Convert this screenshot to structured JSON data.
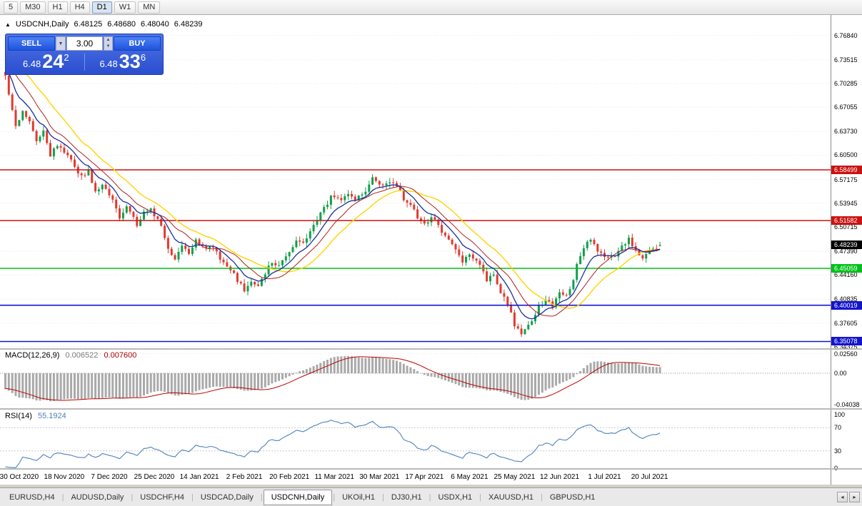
{
  "toolbar": {
    "timeframes": [
      "5",
      "M30",
      "H1",
      "H4",
      "D1",
      "W1",
      "MN"
    ],
    "active": "D1"
  },
  "chart": {
    "collapse_icon": "▲",
    "title_symbol": "USDCNH,Daily",
    "ohlc": {
      "open": "6.48125",
      "high": "6.48680",
      "low": "6.48040",
      "close": "6.48239"
    }
  },
  "trade_panel": {
    "sell_label": "SELL",
    "buy_label": "BUY",
    "volume": "3.00",
    "bid": {
      "prefix": "6.48",
      "big": "24",
      "sup": "2"
    },
    "ask": {
      "prefix": "6.48",
      "big": "33",
      "sup": "6"
    }
  },
  "price_axis": {
    "labels": [
      "6.76840",
      "6.73515",
      "6.70285",
      "6.67055",
      "6.63730",
      "6.60500",
      "6.57175",
      "6.53945",
      "6.50715",
      "6.47390",
      "6.44160",
      "6.40835",
      "6.37605",
      "6.34375"
    ],
    "current": {
      "value": "6.48239",
      "color": "#000000"
    }
  },
  "levels": [
    {
      "value": "6.58499",
      "price": 6.58499,
      "color": "#CC1111",
      "type": "resistance"
    },
    {
      "value": "6.51582",
      "price": 6.51582,
      "color": "#CC1111",
      "type": "resistance"
    },
    {
      "value": "6.45059",
      "price": 6.45059,
      "color": "#00C11B",
      "type": "support"
    },
    {
      "value": "6.40019",
      "price": 6.40019,
      "color": "#1414CC",
      "type": "support"
    },
    {
      "value": "6.35078",
      "price": 6.35078,
      "color": "#1414CC",
      "type": "support"
    }
  ],
  "macd": {
    "label": "MACD(12,26,9)",
    "value": "0.006522",
    "signal": "0.007600",
    "axis": [
      "0.02560",
      "0.00",
      "-0.04038"
    ]
  },
  "rsi": {
    "label": "RSI(14)",
    "value": "55.1924",
    "axis": [
      "100",
      "70",
      "30",
      "0"
    ]
  },
  "date_axis": [
    "30 Oct 2020",
    "18 Nov 2020",
    "7 Dec 2020",
    "25 Dec 2020",
    "14 Jan 2021",
    "2 Feb 2021",
    "20 Feb 2021",
    "11 Mar 2021",
    "30 Mar 2021",
    "17 Apr 2021",
    "6 May 2021",
    "25 May 2021",
    "12 Jun 2021",
    "1 Jul 2021",
    "20 Jul 2021"
  ],
  "tabs": {
    "items": [
      {
        "label": "EURUSD,H4",
        "active": false
      },
      {
        "label": "AUDUSD,Daily",
        "active": false
      },
      {
        "label": "USDCHF,H4",
        "active": false
      },
      {
        "label": "USDCAD,Daily",
        "active": false
      },
      {
        "label": "USDCNH,Daily",
        "active": true
      },
      {
        "label": "UKOil,H1",
        "active": false
      },
      {
        "label": "DJ30,H1",
        "active": false
      },
      {
        "label": "USDX,H1",
        "active": false
      },
      {
        "label": "XAUUSD,H1",
        "active": false
      },
      {
        "label": "GBPUSD,H1",
        "active": false
      }
    ]
  },
  "colors": {
    "bull": "#10A04A",
    "bear": "#E03A30",
    "ma_fast": "#1A2FA0",
    "ma_mid": "#B22020",
    "ma_slow": "#FFD400",
    "grid": "#E3E3E3",
    "macd_hist": "#A9A9A9",
    "macd_signal": "#C00000",
    "rsi_line": "#4F81BD"
  },
  "chart_data": {
    "type": "candlestick",
    "symbol": "USDCNH",
    "timeframe": "Daily",
    "visible_bars": 190,
    "y_range": [
      6.335,
      6.792
    ],
    "last_bar": {
      "open": 6.48125,
      "high": 6.4868,
      "low": 6.4804,
      "close": 6.48239
    },
    "levels": [
      6.58499,
      6.51582,
      6.45059,
      6.40019,
      6.35078
    ],
    "date_ticks": {
      "first_bar": 4,
      "step_bars": 13
    },
    "price_path": [
      [
        -45,
        6.845
      ],
      [
        -30,
        6.81
      ],
      [
        -18,
        6.775
      ],
      [
        -8,
        6.74
      ],
      [
        0,
        6.715
      ],
      [
        1,
        6.69
      ],
      [
        3,
        6.645
      ],
      [
        5,
        6.665
      ],
      [
        7,
        6.65
      ],
      [
        9,
        6.625
      ],
      [
        11,
        6.64
      ],
      [
        13,
        6.605
      ],
      [
        15,
        6.62
      ],
      [
        18,
        6.605
      ],
      [
        20,
        6.59
      ],
      [
        22,
        6.575
      ],
      [
        24,
        6.585
      ],
      [
        26,
        6.555
      ],
      [
        28,
        6.565
      ],
      [
        31,
        6.545
      ],
      [
        33,
        6.52
      ],
      [
        35,
        6.535
      ],
      [
        38,
        6.51
      ],
      [
        40,
        6.525
      ],
      [
        42,
        6.53
      ],
      [
        45,
        6.508
      ],
      [
        47,
        6.478
      ],
      [
        49,
        6.465
      ],
      [
        51,
        6.48
      ],
      [
        53,
        6.47
      ],
      [
        55,
        6.49
      ],
      [
        58,
        6.475
      ],
      [
        60,
        6.482
      ],
      [
        62,
        6.462
      ],
      [
        64,
        6.455
      ],
      [
        66,
        6.442
      ],
      [
        69,
        6.42
      ],
      [
        71,
        6.43
      ],
      [
        73,
        6.425
      ],
      [
        75,
        6.445
      ],
      [
        77,
        6.458
      ],
      [
        79,
        6.453
      ],
      [
        81,
        6.468
      ],
      [
        84,
        6.488
      ],
      [
        86,
        6.483
      ],
      [
        88,
        6.5
      ],
      [
        90,
        6.518
      ],
      [
        92,
        6.532
      ],
      [
        94,
        6.548
      ],
      [
        97,
        6.543
      ],
      [
        99,
        6.552
      ],
      [
        101,
        6.545
      ],
      [
        104,
        6.556
      ],
      [
        106,
        6.574
      ],
      [
        108,
        6.564
      ],
      [
        111,
        6.57
      ],
      [
        113,
        6.563
      ],
      [
        115,
        6.545
      ],
      [
        117,
        6.538
      ],
      [
        119,
        6.52
      ],
      [
        121,
        6.514
      ],
      [
        124,
        6.52
      ],
      [
        126,
        6.5
      ],
      [
        128,
        6.49
      ],
      [
        130,
        6.474
      ],
      [
        132,
        6.46
      ],
      [
        134,
        6.47
      ],
      [
        137,
        6.455
      ],
      [
        139,
        6.433
      ],
      [
        141,
        6.443
      ],
      [
        143,
        6.418
      ],
      [
        145,
        6.403
      ],
      [
        147,
        6.373
      ],
      [
        149,
        6.359
      ],
      [
        150,
        6.368
      ],
      [
        152,
        6.378
      ],
      [
        154,
        6.398
      ],
      [
        156,
        6.408
      ],
      [
        158,
        6.399
      ],
      [
        160,
        6.418
      ],
      [
        162,
        6.413
      ],
      [
        164,
        6.432
      ],
      [
        165,
        6.458
      ],
      [
        167,
        6.478
      ],
      [
        169,
        6.49
      ],
      [
        171,
        6.474
      ],
      [
        173,
        6.464
      ],
      [
        176,
        6.469
      ],
      [
        178,
        6.481
      ],
      [
        180,
        6.49
      ],
      [
        182,
        6.474
      ],
      [
        184,
        6.464
      ],
      [
        186,
        6.474
      ],
      [
        188,
        6.479
      ],
      [
        189,
        6.48239
      ]
    ],
    "indicators": [
      {
        "name": "MACD",
        "params": [
          12,
          26,
          9
        ],
        "last_value": 0.006522,
        "last_signal": 0.0076
      },
      {
        "name": "RSI",
        "params": [
          14
        ],
        "last_value": 55.1924
      },
      {
        "name": "MovingAverages",
        "periods": [
          8,
          13,
          21
        ]
      }
    ]
  }
}
